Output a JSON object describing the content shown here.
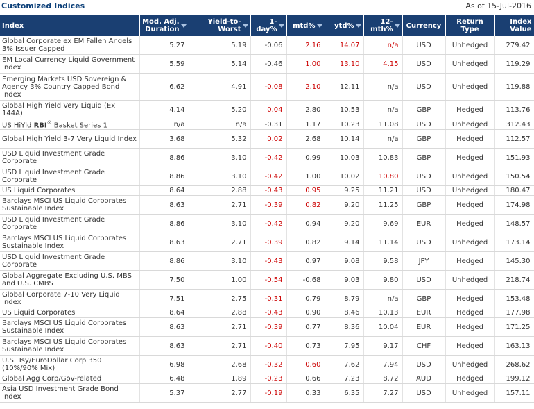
{
  "header": {
    "title": "Customized Indices",
    "as_of": "As of 15-Jul-2016"
  },
  "columns": [
    {
      "key": "index",
      "label": "Index",
      "sortable": false
    },
    {
      "key": "duration",
      "label": "Mod. Adj. Duration",
      "sortable": true
    },
    {
      "key": "ytw",
      "label": "Yield-to-Worst",
      "sortable": true
    },
    {
      "key": "day",
      "label": "1-day%",
      "sortable": true
    },
    {
      "key": "mtd",
      "label": "mtd%",
      "sortable": true
    },
    {
      "key": "ytd",
      "label": "ytd%",
      "sortable": true,
      "active": true
    },
    {
      "key": "m12",
      "label": "12-mth%",
      "sortable": true
    },
    {
      "key": "currency",
      "label": "Currency",
      "sortable": false
    },
    {
      "key": "ret",
      "label": "Return Type",
      "sortable": true
    },
    {
      "key": "value",
      "label": "Index Value",
      "sortable": true
    }
  ],
  "colors": {
    "header_bg": "#1a3f72",
    "title": "#0b3f78",
    "negative": "#cc0000"
  },
  "rows": [
    {
      "name": "Global Corporate ex EM Fallen Angels 3% Issuer Capped",
      "duration": "5.27",
      "ytw": "5.19",
      "day": "-0.06",
      "mtd": "2.16",
      "ytd": "14.07",
      "m12": "n/a",
      "currency": "USD",
      "ret": "Unhedged",
      "value": "279.42",
      "lines": 2,
      "red": [
        "mtd",
        "ytd",
        "m12"
      ]
    },
    {
      "name": "EM Local Currency Liquid Government Index",
      "duration": "5.59",
      "ytw": "5.14",
      "day": "-0.46",
      "mtd": "1.00",
      "ytd": "13.10",
      "m12": "4.15",
      "currency": "USD",
      "ret": "Unhedged",
      "value": "119.29",
      "lines": 2,
      "red": [
        "mtd",
        "ytd",
        "m12"
      ]
    },
    {
      "name": "Emerging Markets USD Sovereign & Agency 3% Country Capped Bond Index",
      "duration": "6.62",
      "ytw": "4.91",
      "day": "-0.08",
      "mtd": "2.10",
      "ytd": "12.11",
      "m12": "n/a",
      "currency": "USD",
      "ret": "Unhedged",
      "value": "119.88",
      "lines": 3,
      "red": [
        "day",
        "mtd"
      ]
    },
    {
      "name": "Global High Yield Very Liquid (Ex 144A)",
      "duration": "4.14",
      "ytw": "5.20",
      "day": "0.04",
      "mtd": "2.80",
      "ytd": "10.53",
      "m12": "n/a",
      "currency": "GBP",
      "ret": "Hedged",
      "value": "113.76",
      "lines": 2,
      "red": [
        "day"
      ]
    },
    {
      "name": "US HiYld RBI Basket Series 1",
      "name_parts": {
        "pre": "US HiYld ",
        "bold": "RBI",
        "sup": "®",
        "post": " Basket Series 1"
      },
      "duration": "n/a",
      "ytw": "n/a",
      "day": "-0.31",
      "mtd": "1.17",
      "ytd": "10.23",
      "m12": "11.08",
      "currency": "USD",
      "ret": "Unhedged",
      "value": "312.43",
      "lines": 1,
      "red": []
    },
    {
      "name": "Global High Yield 3-7 Very Liquid Index",
      "duration": "3.68",
      "ytw": "5.32",
      "day": "0.02",
      "mtd": "2.68",
      "ytd": "10.14",
      "m12": "n/a",
      "currency": "GBP",
      "ret": "Hedged",
      "value": "112.57",
      "lines": 2,
      "red": [
        "day"
      ]
    },
    {
      "name": "USD Liquid Investment Grade Corporate",
      "duration": "8.86",
      "ytw": "3.10",
      "day": "-0.42",
      "mtd": "0.99",
      "ytd": "10.03",
      "m12": "10.83",
      "currency": "GBP",
      "ret": "Hedged",
      "value": "151.93",
      "lines": 2,
      "red": [
        "day"
      ]
    },
    {
      "name": "USD Liquid Investment Grade Corporate",
      "duration": "8.86",
      "ytw": "3.10",
      "day": "-0.42",
      "mtd": "1.00",
      "ytd": "10.02",
      "m12": "10.80",
      "currency": "USD",
      "ret": "Unhedged",
      "value": "150.54",
      "lines": 2,
      "red": [
        "day",
        "m12"
      ]
    },
    {
      "name": "US Liquid Corporates",
      "duration": "8.64",
      "ytw": "2.88",
      "day": "-0.43",
      "mtd": "0.95",
      "ytd": "9.25",
      "m12": "11.21",
      "currency": "USD",
      "ret": "Unhedged",
      "value": "180.47",
      "lines": 1,
      "red": [
        "day",
        "mtd"
      ]
    },
    {
      "name": "Barclays MSCI US Liquid Corporates Sustainable Index",
      "duration": "8.63",
      "ytw": "2.71",
      "day": "-0.39",
      "mtd": "0.82",
      "ytd": "9.20",
      "m12": "11.25",
      "currency": "GBP",
      "ret": "Hedged",
      "value": "174.98",
      "lines": 2,
      "red": [
        "day",
        "mtd"
      ]
    },
    {
      "name": "USD Liquid Investment Grade Corporate",
      "duration": "8.86",
      "ytw": "3.10",
      "day": "-0.42",
      "mtd": "0.94",
      "ytd": "9.20",
      "m12": "9.69",
      "currency": "EUR",
      "ret": "Hedged",
      "value": "148.57",
      "lines": 2,
      "red": [
        "day"
      ]
    },
    {
      "name": "Barclays MSCI US Liquid Corporates Sustainable Index",
      "duration": "8.63",
      "ytw": "2.71",
      "day": "-0.39",
      "mtd": "0.82",
      "ytd": "9.14",
      "m12": "11.14",
      "currency": "USD",
      "ret": "Unhedged",
      "value": "173.14",
      "lines": 2,
      "red": [
        "day"
      ]
    },
    {
      "name": "USD Liquid Investment Grade Corporate",
      "duration": "8.86",
      "ytw": "3.10",
      "day": "-0.43",
      "mtd": "0.97",
      "ytd": "9.08",
      "m12": "9.58",
      "currency": "JPY",
      "ret": "Hedged",
      "value": "145.30",
      "lines": 2,
      "red": [
        "day"
      ]
    },
    {
      "name": "Global Aggregate Excluding U.S. MBS and U.S. CMBS",
      "duration": "7.50",
      "ytw": "1.00",
      "day": "-0.54",
      "mtd": "-0.68",
      "ytd": "9.03",
      "m12": "9.80",
      "currency": "USD",
      "ret": "Unhedged",
      "value": "218.74",
      "lines": 2,
      "red": [
        "day"
      ]
    },
    {
      "name": "Global Corporate 7-10 Very Liquid Index",
      "duration": "7.51",
      "ytw": "2.75",
      "day": "-0.31",
      "mtd": "0.79",
      "ytd": "8.79",
      "m12": "n/a",
      "currency": "GBP",
      "ret": "Hedged",
      "value": "153.48",
      "lines": 2,
      "red": [
        "day"
      ]
    },
    {
      "name": "US Liquid Corporates",
      "duration": "8.64",
      "ytw": "2.88",
      "day": "-0.43",
      "mtd": "0.90",
      "ytd": "8.46",
      "m12": "10.13",
      "currency": "EUR",
      "ret": "Hedged",
      "value": "177.98",
      "lines": 1,
      "red": [
        "day"
      ]
    },
    {
      "name": "Barclays MSCI US Liquid Corporates Sustainable Index",
      "duration": "8.63",
      "ytw": "2.71",
      "day": "-0.39",
      "mtd": "0.77",
      "ytd": "8.36",
      "m12": "10.04",
      "currency": "EUR",
      "ret": "Hedged",
      "value": "171.25",
      "lines": 2,
      "red": [
        "day"
      ]
    },
    {
      "name": "Barclays MSCI US Liquid Corporates Sustainable Index",
      "duration": "8.63",
      "ytw": "2.71",
      "day": "-0.40",
      "mtd": "0.73",
      "ytd": "7.95",
      "m12": "9.17",
      "currency": "CHF",
      "ret": "Hedged",
      "value": "163.13",
      "lines": 2,
      "red": [
        "day"
      ]
    },
    {
      "name": "U.S. Tsy/EuroDollar Corp 350 (10%/90% Mix)",
      "duration": "6.98",
      "ytw": "2.68",
      "day": "-0.32",
      "mtd": "0.60",
      "ytd": "7.62",
      "m12": "7.94",
      "currency": "USD",
      "ret": "Unhedged",
      "value": "268.62",
      "lines": 2,
      "red": [
        "day",
        "mtd"
      ]
    },
    {
      "name": "Global Agg Corp/Gov-related",
      "duration": "6.48",
      "ytw": "1.89",
      "day": "-0.23",
      "mtd": "0.66",
      "ytd": "7.23",
      "m12": "8.72",
      "currency": "AUD",
      "ret": "Hedged",
      "value": "199.12",
      "lines": 1,
      "red": [
        "day"
      ]
    },
    {
      "name": "Asia USD Investment Grade Bond Index",
      "duration": "5.37",
      "ytw": "2.77",
      "day": "-0.19",
      "mtd": "0.33",
      "ytd": "6.35",
      "m12": "7.27",
      "currency": "USD",
      "ret": "Unhedged",
      "value": "157.11",
      "lines": 2,
      "red": [
        "day"
      ]
    }
  ]
}
